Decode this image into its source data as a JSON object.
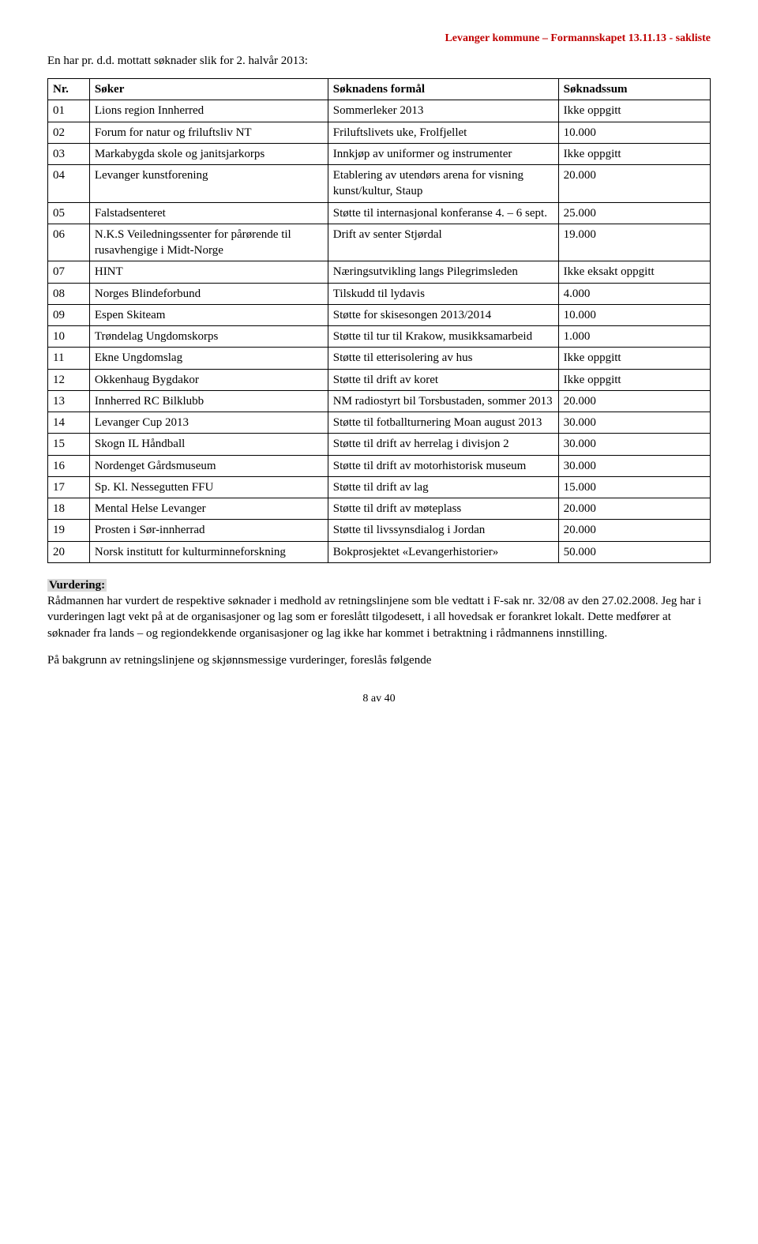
{
  "header": {
    "right": "Levanger kommune – Formannskapet 13.11.13 - sakliste"
  },
  "intro": "En har pr. d.d. mottatt søknader slik for 2. halvår 2013:",
  "table": {
    "columns": [
      "Nr.",
      "Søker",
      "Søknadens formål",
      "Søknadssum"
    ],
    "rows": [
      {
        "nr": "01",
        "soker": "Lions region Innherred",
        "formal": "Sommerleker 2013",
        "sum": "Ikke oppgitt"
      },
      {
        "nr": "02",
        "soker": "Forum for natur og friluftsliv NT",
        "formal": "Friluftslivets uke, Frolfjellet",
        "sum": "10.000"
      },
      {
        "nr": "03",
        "soker": "Markabygda skole og janitsjarkorps",
        "formal": "Innkjøp av uniformer og instrumenter",
        "sum": "Ikke oppgitt"
      },
      {
        "nr": "04",
        "soker": "Levanger kunstforening",
        "formal": "Etablering av utendørs arena for visning kunst/kultur, Staup",
        "sum": "20.000"
      },
      {
        "nr": "05",
        "soker": "Falstadsenteret",
        "formal": "Støtte til internasjonal konferanse 4. – 6 sept.",
        "sum": "25.000"
      },
      {
        "nr": "06",
        "soker": "N.K.S Veiledningssenter for pårørende til rusavhengige i Midt-Norge",
        "formal": "Drift av senter Stjørdal",
        "sum": "19.000"
      },
      {
        "nr": "07",
        "soker": "HINT",
        "formal": "Næringsutvikling langs Pilegrimsleden",
        "sum": "Ikke eksakt oppgitt"
      },
      {
        "nr": "08",
        "soker": "Norges Blindeforbund",
        "formal": "Tilskudd til lydavis",
        "sum": " 4.000"
      },
      {
        "nr": "09",
        "soker": "Espen Skiteam",
        "formal": "Støtte for skisesongen 2013/2014",
        "sum": "10.000"
      },
      {
        "nr": "10",
        "soker": "Trøndelag Ungdomskorps",
        "formal": "Støtte til tur til Krakow, musikksamarbeid",
        "sum": " 1.000"
      },
      {
        "nr": "11",
        "soker": "Ekne Ungdomslag",
        "formal": "Støtte til etterisolering av hus",
        "sum": "Ikke oppgitt"
      },
      {
        "nr": "12",
        "soker": "Okkenhaug Bygdakor",
        "formal": "Støtte til drift av koret",
        "sum": "Ikke oppgitt"
      },
      {
        "nr": "13",
        "soker": "Innherred RC Bilklubb",
        "formal": "NM radiostyrt bil Torsbustaden, sommer 2013",
        "sum": "20.000"
      },
      {
        "nr": "14",
        "soker": "Levanger Cup 2013",
        "formal": "Støtte til fotballturnering Moan august 2013",
        "sum": "30.000"
      },
      {
        "nr": "15",
        "soker": "Skogn IL Håndball",
        "formal": "Støtte til drift av herrelag i divisjon 2",
        "sum": "30.000"
      },
      {
        "nr": "16",
        "soker": "Nordenget Gårdsmuseum",
        "formal": "Støtte til drift av motorhistorisk museum",
        "sum": "30.000"
      },
      {
        "nr": "17",
        "soker": "Sp. Kl. Nessegutten FFU",
        "formal": "Støtte til drift av lag",
        "sum": "15.000"
      },
      {
        "nr": "18",
        "soker": "Mental Helse Levanger",
        "formal": "Støtte til drift av møteplass",
        "sum": "20.000"
      },
      {
        "nr": "19",
        "soker": "Prosten i Sør-innherrad",
        "formal": "Støtte til livssynsdialog i Jordan",
        "sum": "20.000"
      },
      {
        "nr": "20",
        "soker": "Norsk institutt for kulturminneforskning",
        "formal": "Bokprosjektet «Levangerhistorier»",
        "sum": "50.000"
      }
    ]
  },
  "vurdering": {
    "heading": "Vurdering:",
    "para1": "Rådmannen har vurdert de respektive søknader i medhold av retningslinjene som ble vedtatt i F-sak nr. 32/08 av den 27.02.2008. Jeg har i vurderingen lagt vekt på at de organisasjoner og lag som er foreslått tilgodesett, i all hovedsak er forankret lokalt. Dette medfører at søknader fra lands – og regiondekkende organisasjoner og lag ikke har kommet i betraktning i rådmannens innstilling.",
    "para2": "På bakgrunn av retningslinjene og skjønnsmessige vurderinger, foreslås følgende"
  },
  "footer": "8 av 40"
}
